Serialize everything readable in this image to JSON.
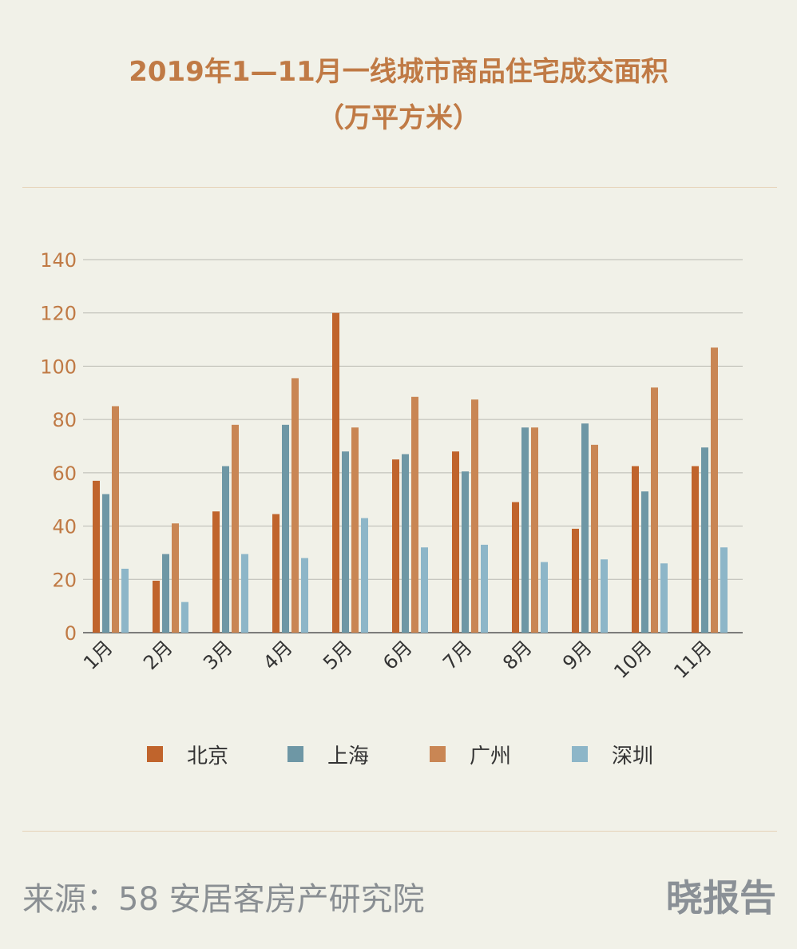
{
  "header": {
    "title_line1": "2019年1—11月一线城市商品住宅成交面积",
    "title_line2": "（万平方米）"
  },
  "chart_data": {
    "type": "bar",
    "categories": [
      "1月",
      "2月",
      "3月",
      "4月",
      "5月",
      "6月",
      "7月",
      "8月",
      "9月",
      "10月",
      "11月"
    ],
    "series": [
      {
        "name": "北京",
        "color": "#c0642c",
        "values": [
          57,
          19.5,
          45.5,
          44.5,
          120,
          65,
          68,
          49,
          39,
          62.5,
          62.5
        ]
      },
      {
        "name": "上海",
        "color": "#6e97a5",
        "values": [
          52,
          29.5,
          62.5,
          78,
          68,
          67,
          60.5,
          77,
          78.5,
          53,
          69.5
        ]
      },
      {
        "name": "广州",
        "color": "#c98654",
        "values": [
          85,
          41,
          78,
          95.5,
          77,
          88.5,
          87.5,
          77,
          70.5,
          92,
          107
        ]
      },
      {
        "name": "深圳",
        "color": "#8db6c8",
        "values": [
          24,
          11.5,
          29.5,
          28,
          43,
          32,
          33,
          26.5,
          27.5,
          26,
          32
        ]
      }
    ],
    "yticks": [
      "0",
      "20",
      "40",
      "60",
      "80",
      "100",
      "120",
      "140"
    ],
    "ylim": [
      0,
      140
    ],
    "grid": true,
    "legend_position": "bottom"
  },
  "footer": {
    "source": "来源：58 安居客房产研究院",
    "brand": "晓报告"
  }
}
